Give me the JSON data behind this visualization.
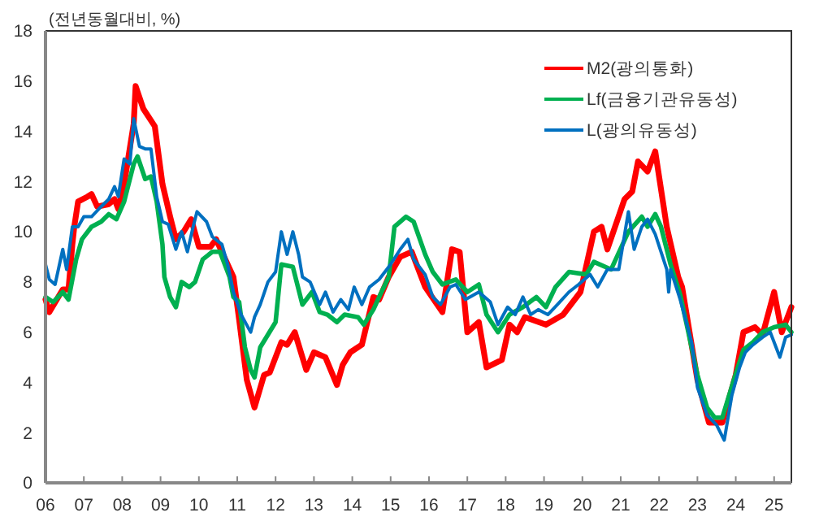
{
  "chart_data": {
    "type": "line",
    "ylabel": "(전년동월대비, %)",
    "xlim": [
      2006,
      2025.45
    ],
    "ylim": [
      0,
      18
    ],
    "xticks": [
      {
        "value": 2006,
        "label": "06"
      },
      {
        "value": 2007,
        "label": "07"
      },
      {
        "value": 2008,
        "label": "08"
      },
      {
        "value": 2009,
        "label": "09"
      },
      {
        "value": 2010,
        "label": "10"
      },
      {
        "value": 2011,
        "label": "11"
      },
      {
        "value": 2012,
        "label": "12"
      },
      {
        "value": 2013,
        "label": "13"
      },
      {
        "value": 2014,
        "label": "14"
      },
      {
        "value": 2015,
        "label": "15"
      },
      {
        "value": 2016,
        "label": "16"
      },
      {
        "value": 2017,
        "label": "17"
      },
      {
        "value": 2018,
        "label": "18"
      },
      {
        "value": 2019,
        "label": "19"
      },
      {
        "value": 2020,
        "label": "20"
      },
      {
        "value": 2021,
        "label": "21"
      },
      {
        "value": 2022,
        "label": "22"
      },
      {
        "value": 2023,
        "label": "23"
      },
      {
        "value": 2024,
        "label": "24"
      },
      {
        "value": 2025,
        "label": "25"
      }
    ],
    "yticks": [
      0,
      2,
      4,
      6,
      8,
      10,
      12,
      14,
      16,
      18
    ],
    "grid": false,
    "legend": "top right",
    "marker": "none",
    "line_style": "solid",
    "series": [
      {
        "name": "M2(광의통화)",
        "color": "#ff0000",
        "x": [
          2006.0,
          2006.1,
          2006.45,
          2006.6,
          2006.7,
          2006.75,
          2006.85,
          2007.1,
          2007.2,
          2007.35,
          2007.65,
          2007.8,
          2007.9,
          2008.05,
          2008.3,
          2008.35,
          2008.55,
          2008.85,
          2009.05,
          2009.25,
          2009.4,
          2009.6,
          2009.8,
          2010.0,
          2010.3,
          2010.45,
          2010.9,
          2011.05,
          2011.25,
          2011.45,
          2011.7,
          2011.85,
          2012.15,
          2012.3,
          2012.5,
          2012.8,
          2013.0,
          2013.3,
          2013.6,
          2013.75,
          2013.95,
          2014.25,
          2014.55,
          2014.7,
          2014.95,
          2015.25,
          2015.55,
          2015.9,
          2016.35,
          2016.6,
          2016.8,
          2017.0,
          2017.3,
          2017.5,
          2017.9,
          2018.1,
          2018.3,
          2018.5,
          2019.05,
          2019.5,
          2019.95,
          2020.3,
          2020.5,
          2020.65,
          2021.1,
          2021.3,
          2021.45,
          2021.7,
          2021.9,
          2022.2,
          2022.5,
          2022.6,
          2023.0,
          2023.3,
          2023.65,
          2024.0,
          2024.2,
          2024.5,
          2024.7,
          2025.0,
          2025.2,
          2025.45
        ],
        "values": [
          7.3,
          6.8,
          7.7,
          7.7,
          9.5,
          10.2,
          11.2,
          11.4,
          11.5,
          11.0,
          11.1,
          11.3,
          10.9,
          11.9,
          14.3,
          15.8,
          14.9,
          14.2,
          11.9,
          10.6,
          9.7,
          10.0,
          10.5,
          9.4,
          9.4,
          9.7,
          8.2,
          6.5,
          4.1,
          3.0,
          4.3,
          4.4,
          5.6,
          5.5,
          6.0,
          4.5,
          5.2,
          5.0,
          3.9,
          4.7,
          5.2,
          5.5,
          7.4,
          7.3,
          8.2,
          9.0,
          9.2,
          7.8,
          6.8,
          9.3,
          9.2,
          6.0,
          6.4,
          4.6,
          4.9,
          6.3,
          6.0,
          6.6,
          6.3,
          6.7,
          7.6,
          10.0,
          10.2,
          9.3,
          11.3,
          11.6,
          12.8,
          12.4,
          13.2,
          10.2,
          8.2,
          7.8,
          4.1,
          2.4,
          2.4,
          4.3,
          6.0,
          6.2,
          5.9,
          7.6,
          6.0,
          7.0
        ]
      },
      {
        "name": "Lf(금융기관유동성)",
        "color": "#00b050",
        "x": [
          2006.0,
          2006.2,
          2006.45,
          2006.6,
          2006.8,
          2006.95,
          2007.2,
          2007.45,
          2007.65,
          2007.85,
          2008.05,
          2008.3,
          2008.4,
          2008.6,
          2008.75,
          2008.9,
          2009.05,
          2009.1,
          2009.25,
          2009.4,
          2009.55,
          2009.75,
          2009.9,
          2010.1,
          2010.35,
          2010.55,
          2010.8,
          2010.9,
          2011.05,
          2011.2,
          2011.35,
          2011.45,
          2011.6,
          2011.8,
          2012.0,
          2012.15,
          2012.45,
          2012.7,
          2012.95,
          2013.15,
          2013.35,
          2013.6,
          2013.8,
          2014.15,
          2014.3,
          2014.55,
          2014.7,
          2014.95,
          2015.1,
          2015.4,
          2015.6,
          2015.9,
          2016.1,
          2016.35,
          2016.7,
          2017.0,
          2017.3,
          2017.5,
          2017.8,
          2018.1,
          2018.45,
          2018.8,
          2019.05,
          2019.3,
          2019.65,
          2020.1,
          2020.3,
          2020.75,
          2021.2,
          2021.55,
          2021.7,
          2021.9,
          2022.05,
          2022.3,
          2022.55,
          2022.75,
          2023.0,
          2023.25,
          2023.45,
          2023.65,
          2023.95,
          2024.2,
          2024.45,
          2024.7,
          2025.0,
          2025.3,
          2025.45
        ],
        "values": [
          7.4,
          7.2,
          7.6,
          7.3,
          8.9,
          9.7,
          10.2,
          10.4,
          10.7,
          10.5,
          11.2,
          12.7,
          13.0,
          12.1,
          12.2,
          11.2,
          9.5,
          8.2,
          7.4,
          7.0,
          8.0,
          7.8,
          8.0,
          8.9,
          9.2,
          9.2,
          8.2,
          7.4,
          7.2,
          5.4,
          4.5,
          4.2,
          5.4,
          5.9,
          6.4,
          8.7,
          8.6,
          7.1,
          7.6,
          6.8,
          6.7,
          6.4,
          6.7,
          6.6,
          6.3,
          6.9,
          7.4,
          8.2,
          10.2,
          10.6,
          10.4,
          9.1,
          8.4,
          7.9,
          8.1,
          7.6,
          7.9,
          6.7,
          6.0,
          6.7,
          7.0,
          7.4,
          7.0,
          7.8,
          8.4,
          8.3,
          8.8,
          8.5,
          10.0,
          10.6,
          10.2,
          10.7,
          10.2,
          8.7,
          7.5,
          6.1,
          4.3,
          3.0,
          2.6,
          2.6,
          4.1,
          5.3,
          5.6,
          6.0,
          6.2,
          6.3,
          6.0
        ]
      },
      {
        "name": "L(광의유동성)",
        "color": "#0070c0",
        "x": [
          2006.0,
          2006.1,
          2006.25,
          2006.45,
          2006.55,
          2006.7,
          2006.85,
          2007.0,
          2007.2,
          2007.45,
          2007.65,
          2007.8,
          2007.9,
          2008.05,
          2008.2,
          2008.3,
          2008.45,
          2008.6,
          2008.75,
          2008.9,
          2009.05,
          2009.2,
          2009.4,
          2009.55,
          2009.7,
          2009.85,
          2009.95,
          2010.2,
          2010.35,
          2010.6,
          2010.75,
          2010.9,
          2011.1,
          2011.35,
          2011.45,
          2011.6,
          2011.8,
          2012.0,
          2012.15,
          2012.3,
          2012.45,
          2012.6,
          2012.7,
          2012.9,
          2013.15,
          2013.3,
          2013.5,
          2013.7,
          2013.9,
          2014.05,
          2014.25,
          2014.45,
          2014.7,
          2015.0,
          2015.25,
          2015.45,
          2015.6,
          2015.9,
          2016.1,
          2016.3,
          2016.55,
          2016.7,
          2016.95,
          2017.3,
          2017.6,
          2017.8,
          2018.05,
          2018.25,
          2018.45,
          2018.65,
          2018.85,
          2019.1,
          2019.35,
          2019.65,
          2019.9,
          2020.2,
          2020.4,
          2020.65,
          2020.95,
          2021.2,
          2021.35,
          2021.55,
          2021.7,
          2021.9,
          2022.2,
          2022.25,
          2022.3,
          2022.55,
          2022.85,
          2023.0,
          2023.25,
          2023.5,
          2023.7,
          2023.9,
          2024.1,
          2024.25,
          2024.45,
          2024.7,
          2024.9,
          2025.15,
          2025.3,
          2025.45
        ],
        "values": [
          8.7,
          8.1,
          7.9,
          9.3,
          8.5,
          10.2,
          10.2,
          10.6,
          10.6,
          11.0,
          11.3,
          11.8,
          11.4,
          12.9,
          12.7,
          14.5,
          13.4,
          13.3,
          13.3,
          11.4,
          10.4,
          10.3,
          9.3,
          10.0,
          9.2,
          10.2,
          10.8,
          10.4,
          9.8,
          9.5,
          8.7,
          7.6,
          6.7,
          6.0,
          6.6,
          7.1,
          8.0,
          8.4,
          10.0,
          9.1,
          10.0,
          9.1,
          8.2,
          8.0,
          7.1,
          7.6,
          6.8,
          7.3,
          6.9,
          7.8,
          7.1,
          7.8,
          8.1,
          8.7,
          9.3,
          9.7,
          8.9,
          8.3,
          7.4,
          7.1,
          7.8,
          7.9,
          7.3,
          7.6,
          7.2,
          6.3,
          7.0,
          6.7,
          7.4,
          6.7,
          6.9,
          6.7,
          7.1,
          7.6,
          7.9,
          8.3,
          7.8,
          8.5,
          8.5,
          10.8,
          9.3,
          10.2,
          10.5,
          9.9,
          8.5,
          7.6,
          8.5,
          7.3,
          5.6,
          3.8,
          2.7,
          2.3,
          1.7,
          3.5,
          4.6,
          5.2,
          5.5,
          5.8,
          6.0,
          5.0,
          5.8,
          5.9
        ]
      }
    ]
  }
}
